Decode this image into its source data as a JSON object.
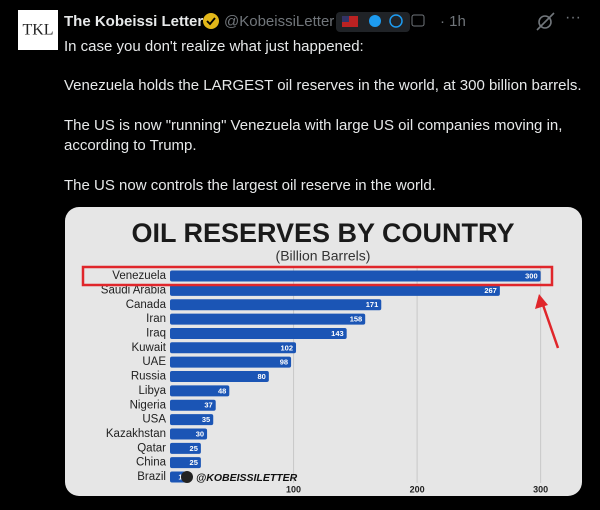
{
  "tweet": {
    "avatar": "TKL",
    "name": "The Kobeissi Letter",
    "handle": "@KobeissiLetter",
    "time": "· 1h",
    "lines": [
      "In case you don't realize what just happened:",
      "Venezuela holds the LARGEST oil reserves in the world, at 300 billion barrels.",
      "The US is now \"running\" Venezuela with large US oil companies moving in,",
      "according to Trump.",
      "The US now controls the largest oil reserve in the world."
    ]
  },
  "chart_data": {
    "type": "barh",
    "title": "OIL RESERVES BY COUNTRY",
    "subtitle": "(Billion Barrels)",
    "annotation": "@KOBEISSILETTER",
    "categories": [
      "Venezuela",
      "Saudi Arabia",
      "Canada",
      "Iran",
      "Iraq",
      "Kuwait",
      "UAE",
      "Russia",
      "Libya",
      "Nigeria",
      "USA",
      "Kazakhstan",
      "Qatar",
      "China",
      "Brazil"
    ],
    "values": [
      300,
      267,
      171,
      158,
      143,
      102,
      98,
      80,
      48,
      37,
      35,
      30,
      25,
      25,
      16
    ],
    "color": "#1b55b5",
    "highlight_color": "#e0262b",
    "xlim": [
      0,
      310
    ],
    "xticks": [
      100,
      200,
      300
    ],
    "grid": true
  }
}
